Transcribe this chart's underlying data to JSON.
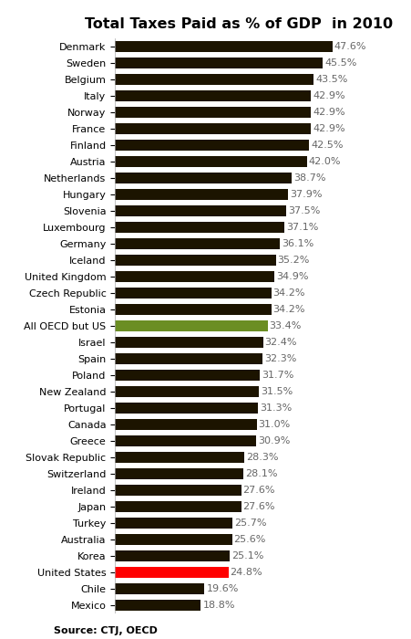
{
  "title": "Total Taxes Paid as % of GDP  in 2010",
  "source": "Source: CTJ, OECD",
  "categories": [
    "Denmark",
    "Sweden",
    "Belgium",
    "Italy",
    "Norway",
    "France",
    "Finland",
    "Austria",
    "Netherlands",
    "Hungary",
    "Slovenia",
    "Luxembourg",
    "Germany",
    "Iceland",
    "United Kingdom",
    "Czech Republic",
    "Estonia",
    "All OECD but US",
    "Israel",
    "Spain",
    "Poland",
    "New Zealand",
    "Portugal",
    "Canada",
    "Greece",
    "Slovak Republic",
    "Switzerland",
    "Ireland",
    "Japan",
    "Turkey",
    "Australia",
    "Korea",
    "United States",
    "Chile",
    "Mexico"
  ],
  "values": [
    47.6,
    45.5,
    43.5,
    42.9,
    42.9,
    42.9,
    42.5,
    42.0,
    38.7,
    37.9,
    37.5,
    37.1,
    36.1,
    35.2,
    34.9,
    34.2,
    34.2,
    33.4,
    32.4,
    32.3,
    31.7,
    31.5,
    31.3,
    31.0,
    30.9,
    28.3,
    28.1,
    27.6,
    27.6,
    25.7,
    25.6,
    25.1,
    24.8,
    19.6,
    18.8
  ],
  "bar_colors": [
    "#1c1400",
    "#1c1400",
    "#1c1400",
    "#1c1400",
    "#1c1400",
    "#1c1400",
    "#1c1400",
    "#1c1400",
    "#1c1400",
    "#1c1400",
    "#1c1400",
    "#1c1400",
    "#1c1400",
    "#1c1400",
    "#1c1400",
    "#1c1400",
    "#1c1400",
    "#6b8e23",
    "#1c1400",
    "#1c1400",
    "#1c1400",
    "#1c1400",
    "#1c1400",
    "#1c1400",
    "#1c1400",
    "#1c1400",
    "#1c1400",
    "#1c1400",
    "#1c1400",
    "#1c1400",
    "#1c1400",
    "#1c1400",
    "#ff0000",
    "#1c1400",
    "#1c1400"
  ],
  "xlim": [
    0,
    54
  ],
  "title_fontsize": 11.5,
  "tick_fontsize": 8,
  "value_fontsize": 8
}
